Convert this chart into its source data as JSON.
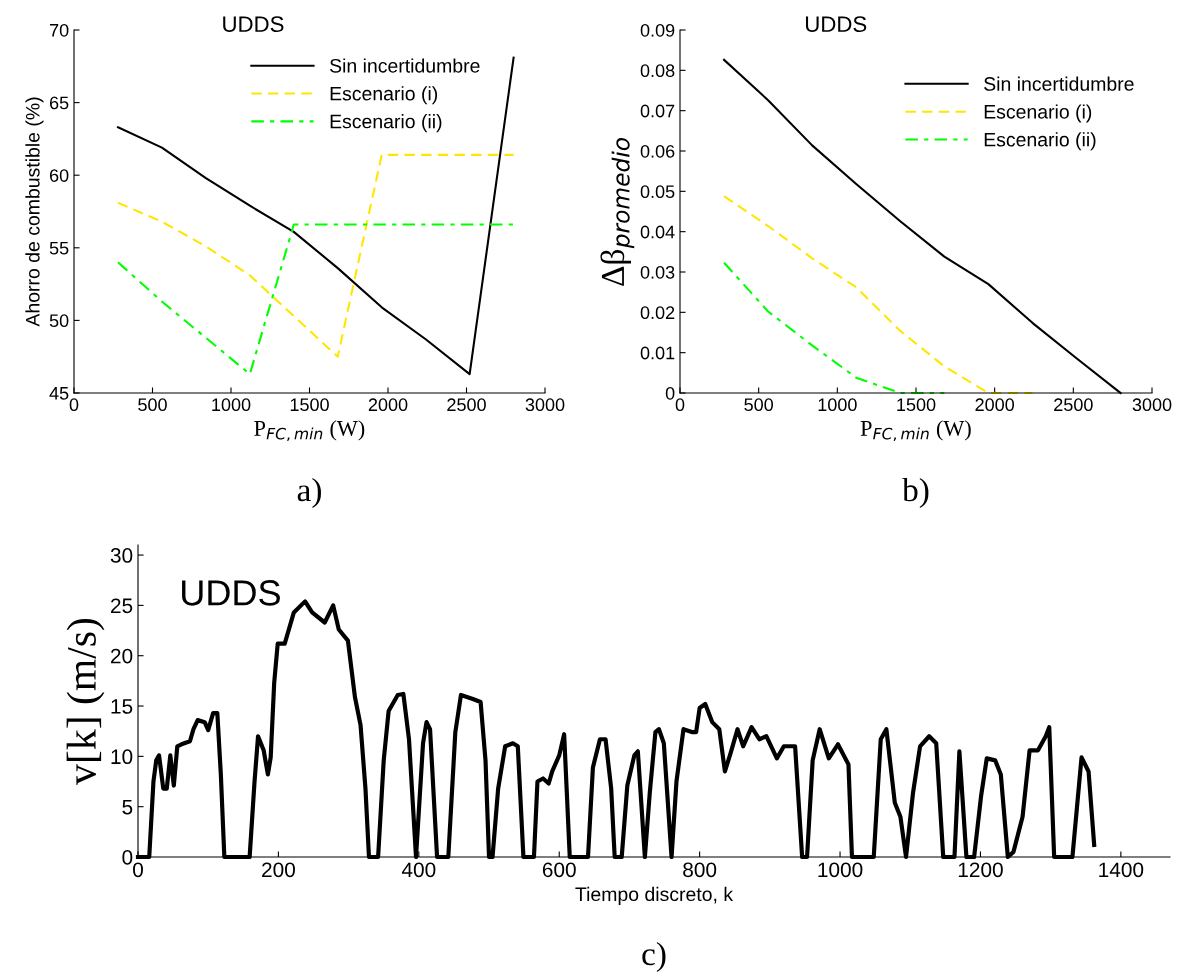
{
  "chart_data": [
    {
      "type": "line",
      "title": "UDDS",
      "xlabel": "P$_{FC,min}$ (W)",
      "ylabel": "Ahorro de combustible (%)",
      "x": [
        280,
        560,
        840,
        1120,
        1400,
        1680,
        1960,
        2240,
        2520,
        2800
      ],
      "series": [
        {
          "name": "Sin incertidumbre",
          "color": "#000000",
          "line_style": "solid",
          "values": [
            63.3,
            61.9,
            59.8,
            57.9,
            56.1,
            53.6,
            50.9,
            48.7,
            46.3,
            68.1
          ]
        },
        {
          "name": "Escenario (i)",
          "color": "#ffe600",
          "line_style": "dashed",
          "values": [
            58.1,
            56.8,
            55.1,
            53.1,
            50.3,
            47.5,
            61.4,
            61.4,
            61.4,
            61.4
          ]
        },
        {
          "name": "Escenario (ii)",
          "color": "#00ff00",
          "line_style": "dashdot",
          "values": [
            54.0,
            51.3,
            48.8,
            46.3,
            56.6,
            56.6,
            56.6,
            56.6,
            56.6,
            56.6
          ]
        }
      ],
      "xlim": [
        0,
        3000
      ],
      "ylim": [
        45,
        70
      ],
      "xticks": [
        0,
        500,
        1000,
        1500,
        2000,
        2500,
        3000
      ],
      "yticks": [
        45,
        50,
        55,
        60,
        65,
        70
      ],
      "legend": "top right",
      "annotations": [
        "a)"
      ]
    },
    {
      "type": "line",
      "title": "UDDS",
      "xlabel": "P$_{FC,min}$ (W)",
      "ylabel": "Δβ$_{promedio}$",
      "x": [
        280,
        560,
        840,
        1120,
        1400,
        1680,
        1960,
        2240,
        2520,
        2800
      ],
      "series": [
        {
          "name": "Sin incertidumbre",
          "color": "#000000",
          "line_style": "solid",
          "values": [
            0.0826,
            0.0726,
            0.0614,
            0.0518,
            0.0426,
            0.0338,
            0.027,
            0.0174,
            0.0086,
            0
          ]
        },
        {
          "name": "Escenario (i)",
          "color": "#ffe600",
          "line_style": "dashed",
          "values": [
            0.0488,
            0.0414,
            0.0334,
            0.0262,
            0.0154,
            0.0066,
            0,
            0,
            null,
            null
          ]
        },
        {
          "name": "Escenario (ii)",
          "color": "#00ff00",
          "line_style": "dashdot",
          "values": [
            0.0323,
            0.0202,
            0.0118,
            0.0038,
            0,
            0,
            null,
            null,
            null,
            null
          ]
        }
      ],
      "xlim": [
        0,
        3000
      ],
      "ylim": [
        0,
        0.09
      ],
      "xticks": [
        0,
        500,
        1000,
        1500,
        2000,
        2500,
        3000
      ],
      "yticks": [
        0,
        0.01,
        0.02,
        0.03,
        0.04,
        0.05,
        0.06,
        0.07,
        0.08,
        0.09
      ],
      "legend": "top right",
      "annotations": [
        "b)"
      ]
    },
    {
      "type": "line",
      "title": "UDDS",
      "xlabel": "Tiempo discreto, k",
      "ylabel": "v[k] (m/s)",
      "x": [
        0,
        16,
        22,
        26,
        30,
        36,
        41,
        46,
        51,
        56,
        62,
        74,
        79,
        85,
        95,
        100,
        107,
        113,
        118,
        123,
        159,
        166,
        171,
        179,
        185,
        189,
        194,
        199,
        209,
        222,
        238,
        248,
        266,
        278,
        286,
        299,
        309,
        317,
        324,
        329,
        342,
        350,
        357,
        370,
        378,
        386,
        396,
        406,
        411,
        416,
        426,
        442,
        452,
        460,
        477,
        488,
        495,
        500,
        505,
        513,
        523,
        534,
        541,
        549,
        564,
        569,
        577,
        585,
        590,
        600,
        607,
        615,
        641,
        648,
        658,
        666,
        674,
        679,
        689,
        697,
        707,
        712,
        722,
        729,
        737,
        742,
        749,
        760,
        767,
        777,
        790,
        795,
        800,
        808,
        818,
        828,
        836,
        844,
        854,
        862,
        874,
        885,
        895,
        910,
        920,
        936,
        946,
        953,
        961,
        971,
        984,
        997,
        1012,
        1017,
        1048,
        1058,
        1066,
        1078,
        1086,
        1094,
        1104,
        1114,
        1127,
        1137,
        1147,
        1163,
        1170,
        1180,
        1191,
        1201,
        1209,
        1221,
        1229,
        1239,
        1247,
        1260,
        1270,
        1282,
        1293,
        1298,
        1305,
        1331,
        1344,
        1354,
        1362
      ],
      "series": [
        {
          "color": "#000000",
          "line_style": "solid",
          "values": [
            0,
            0,
            7.5,
            9.6,
            10.1,
            6.8,
            6.8,
            10.1,
            7.1,
            11.0,
            11.2,
            11.5,
            12.7,
            13.6,
            13.4,
            12.6,
            14.3,
            14.3,
            8.2,
            0,
            0,
            7.5,
            12.0,
            10.6,
            8.2,
            9.9,
            17.3,
            21.2,
            21.2,
            24.3,
            25.4,
            24.3,
            23.3,
            25.0,
            22.6,
            21.5,
            15.9,
            13.1,
            6.8,
            0,
            0,
            9.6,
            14.5,
            16.1,
            16.2,
            11.7,
            0,
            11.3,
            13.4,
            12.7,
            0,
            0,
            12.4,
            16.1,
            15.7,
            15.4,
            9.6,
            0,
            0,
            6.8,
            11.0,
            11.3,
            11.0,
            0,
            0,
            7.5,
            7.8,
            7.3,
            8.5,
            10.1,
            12.2,
            0,
            0,
            8.9,
            11.7,
            11.7,
            6.8,
            0,
            0,
            7.1,
            10.1,
            10.5,
            0,
            6.4,
            12.4,
            12.7,
            11.3,
            0,
            7.5,
            12.7,
            12.4,
            12.4,
            14.8,
            15.2,
            13.4,
            12.7,
            8.5,
            10.3,
            12.7,
            11.0,
            12.9,
            11.7,
            12.0,
            9.8,
            11.0,
            11.0,
            0,
            0,
            9.6,
            12.7,
            9.8,
            11.2,
            9.2,
            0,
            0,
            11.7,
            12.7,
            5.4,
            4.0,
            0,
            6.4,
            11.0,
            12.0,
            11.3,
            0,
            0,
            10.5,
            0,
            0,
            6.1,
            9.8,
            9.6,
            8.2,
            0,
            0.5,
            4.0,
            10.6,
            10.6,
            12.0,
            12.9,
            0,
            0,
            9.9,
            8.5,
            1.2
          ]
        }
      ],
      "xlim": [
        0,
        1470
      ],
      "ylim": [
        0,
        31
      ],
      "xticks": [
        0,
        200,
        400,
        600,
        800,
        1000,
        1200,
        1400
      ],
      "yticks": [
        0,
        5,
        10,
        15,
        20,
        25,
        30
      ],
      "annotations": [
        "c)"
      ]
    }
  ]
}
